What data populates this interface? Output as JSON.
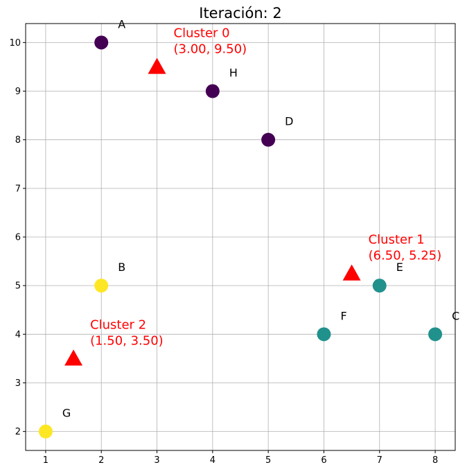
{
  "chart_data": {
    "type": "scatter",
    "title": "Iteración: 2",
    "xlabel": "",
    "ylabel": "",
    "xlim": [
      0.64,
      8.36
    ],
    "ylim": [
      1.61,
      10.39
    ],
    "x_ticks": [
      1,
      2,
      3,
      4,
      5,
      6,
      7,
      8
    ],
    "y_ticks": [
      2,
      3,
      4,
      5,
      6,
      7,
      8,
      9,
      10
    ],
    "grid": true,
    "cluster_colors": {
      "0": "#440154",
      "1": "#21918c",
      "2": "#fde725"
    },
    "centroid_color": "#ff0000",
    "points": [
      {
        "label": "A",
        "x": 2,
        "y": 10,
        "cluster": 0
      },
      {
        "label": "B",
        "x": 2,
        "y": 5,
        "cluster": 2
      },
      {
        "label": "C",
        "x": 8,
        "y": 4,
        "cluster": 1
      },
      {
        "label": "D",
        "x": 5,
        "y": 8,
        "cluster": 0
      },
      {
        "label": "E",
        "x": 7,
        "y": 5,
        "cluster": 1
      },
      {
        "label": "F",
        "x": 6,
        "y": 4,
        "cluster": 1
      },
      {
        "label": "G",
        "x": 1,
        "y": 2,
        "cluster": 2
      },
      {
        "label": "H",
        "x": 4,
        "y": 9,
        "cluster": 0
      }
    ],
    "centroids": [
      {
        "name": "Cluster 0",
        "coords": "(3.00, 9.50)",
        "x": 3.0,
        "y": 9.5
      },
      {
        "name": "Cluster 1",
        "coords": "(6.50, 5.25)",
        "x": 6.5,
        "y": 5.25
      },
      {
        "name": "Cluster 2",
        "coords": "(1.50, 3.50)",
        "x": 1.5,
        "y": 3.5
      }
    ]
  }
}
